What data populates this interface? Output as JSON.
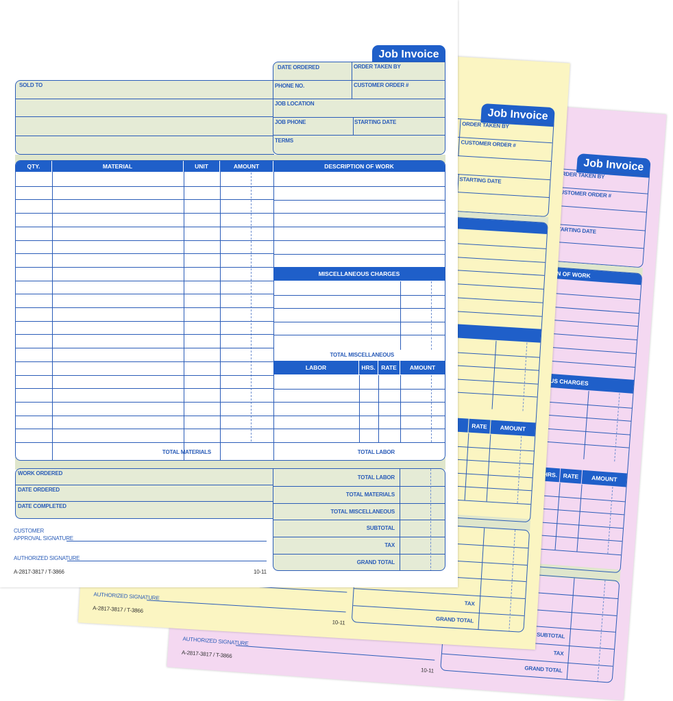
{
  "form": {
    "title": "Job Invoice",
    "colors": {
      "accent": "#1f5fc9",
      "field_fill": "#e5ebd6",
      "copy_yellow": "#fbf5c2",
      "copy_pink": "#f4d8f1"
    },
    "header": {
      "sold_to": "SOLD TO",
      "date_ordered": "DATE ORDERED",
      "order_taken_by": "ORDER TAKEN BY",
      "phone_no": "PHONE NO.",
      "customer_order": "CUSTOMER ORDER #",
      "job_location": "JOB LOCATION",
      "job_phone": "JOB PHONE",
      "starting_date": "STARTING DATE",
      "terms": "TERMS"
    },
    "materials": {
      "columns": [
        "QTY.",
        "MATERIAL",
        "UNIT",
        "AMOUNT"
      ],
      "total": "TOTAL MATERIALS"
    },
    "description": "DESCRIPTION OF WORK",
    "misc": {
      "header": "MISCELLANEOUS CHARGES",
      "total": "TOTAL MISCELLANEOUS"
    },
    "labor": {
      "columns": [
        "LABOR",
        "HRS.",
        "RATE",
        "AMOUNT"
      ],
      "total": "TOTAL LABOR"
    },
    "work": {
      "work_ordered": "WORK ORDERED",
      "date_ordered": "DATE ORDERED",
      "date_completed": "DATE COMPLETED"
    },
    "totals": [
      "TOTAL LABOR",
      "TOTAL MATERIALS",
      "TOTAL MISCELLANEOUS",
      "SUBTOTAL",
      "TAX",
      "GRAND TOTAL"
    ],
    "signatures": {
      "customer_line1": "CUSTOMER",
      "customer_line2": "APPROVAL SIGNATURE",
      "authorized": "AUTHORIZED SIGNATURE"
    },
    "form_number": "A-2817-3817 / T-3866",
    "revision": "10-11"
  }
}
